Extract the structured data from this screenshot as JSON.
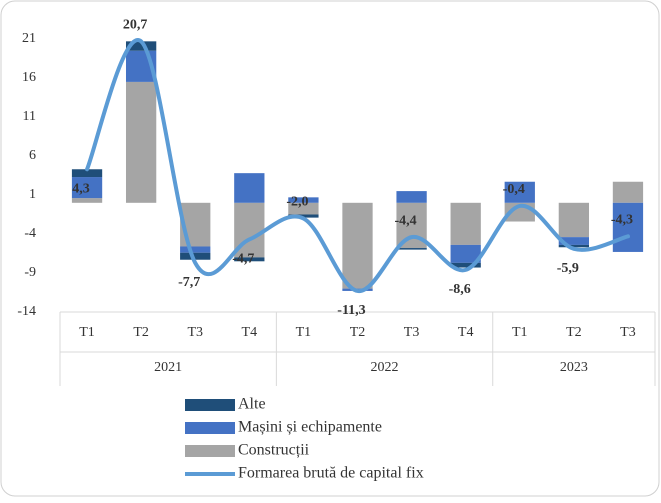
{
  "chart_data": {
    "type": "stacked-bar-line",
    "groups": [
      {
        "name": "2021",
        "categories": [
          "T1",
          "T2",
          "T3",
          "T4"
        ]
      },
      {
        "name": "2022",
        "categories": [
          "T1",
          "T2",
          "T3",
          "T4"
        ]
      },
      {
        "name": "2023",
        "categories": [
          "T1",
          "T2",
          "T3"
        ]
      }
    ],
    "series": [
      {
        "name": "Alte",
        "type": "bar",
        "color": "#1f4e79",
        "values": [
          1.0,
          1.2,
          -0.9,
          -0.5,
          -0.4,
          0,
          -0.2,
          -0.6,
          0,
          -0.3,
          0
        ]
      },
      {
        "name": "Mașini și echipamente",
        "type": "bar",
        "color": "#4472c4",
        "values": [
          2.7,
          4.0,
          -0.8,
          3.8,
          0.7,
          -0.3,
          1.5,
          -2.3,
          2.7,
          -1.0,
          -6.3
        ]
      },
      {
        "name": "Construcții",
        "type": "bar",
        "color": "#a5a5a5",
        "values": [
          0.6,
          15.5,
          -5.6,
          -7.0,
          -1.5,
          -11.0,
          -5.8,
          -5.4,
          -2.4,
          -4.4,
          2.7
        ]
      },
      {
        "name": "Formarea brută de capital fix",
        "type": "line",
        "color": "#5b9bd5",
        "values": [
          4.3,
          20.7,
          -7.7,
          -4.7,
          -2.0,
          -11.3,
          -4.4,
          -8.6,
          -0.4,
          -5.9,
          -4.3
        ],
        "value_labels": [
          "4,3",
          "20,7",
          "-7,7",
          "-4,7",
          "-2,0",
          "-11,3",
          "-4,4",
          "-8,6",
          "-0,4",
          "-5,9",
          "-4,3"
        ]
      }
    ],
    "ylim": [
      -14,
      21
    ],
    "yticks": [
      -14,
      -9,
      -4,
      1,
      6,
      11,
      16,
      21
    ]
  }
}
